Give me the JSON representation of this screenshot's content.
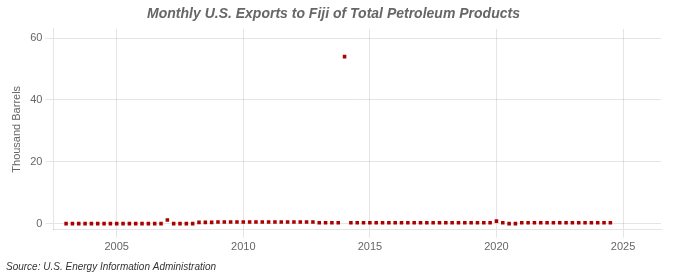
{
  "chart_data": {
    "type": "scatter",
    "title": "Monthly U.S. Exports to Fiji of Total Petroleum Products",
    "y_label": "Thousand Barrels",
    "annotations": [
      "Source: U.S. Energy Information Administration"
    ],
    "x": [
      2003.0,
      2003.25,
      2003.5,
      2003.75,
      2004.0,
      2004.25,
      2004.5,
      2004.75,
      2005.0,
      2005.25,
      2005.5,
      2005.75,
      2006.0,
      2006.25,
      2006.5,
      2006.75,
      2007.0,
      2007.25,
      2007.5,
      2007.75,
      2008.0,
      2008.25,
      2008.5,
      2008.75,
      2009.0,
      2009.25,
      2009.5,
      2009.75,
      2010.0,
      2010.25,
      2010.5,
      2010.75,
      2011.0,
      2011.25,
      2011.5,
      2011.75,
      2012.0,
      2012.25,
      2012.5,
      2012.75,
      2013.0,
      2013.25,
      2013.5,
      2013.75,
      2014.0,
      2014.25,
      2014.5,
      2014.75,
      2015.0,
      2015.25,
      2015.5,
      2015.75,
      2016.0,
      2016.25,
      2016.5,
      2016.75,
      2017.0,
      2017.25,
      2017.5,
      2017.75,
      2018.0,
      2018.25,
      2018.5,
      2018.75,
      2019.0,
      2019.25,
      2019.5,
      2019.75,
      2020.0,
      2020.25,
      2020.5,
      2020.75,
      2021.0,
      2021.25,
      2021.5,
      2021.75,
      2022.0,
      2022.25,
      2022.5,
      2022.75,
      2023.0,
      2023.25,
      2023.5,
      2023.75,
      2024.0,
      2024.25,
      2024.5
    ],
    "values": [
      0,
      0,
      0,
      0,
      0,
      0,
      0,
      0,
      0,
      0,
      0,
      0,
      0,
      0,
      0,
      0,
      1.2,
      0,
      0,
      0,
      0,
      0.4,
      0.4,
      0.4,
      0.5,
      0.5,
      0.5,
      0.5,
      0.5,
      0.5,
      0.5,
      0.5,
      0.5,
      0.5,
      0.5,
      0.5,
      0.5,
      0.5,
      0.5,
      0.5,
      0.3,
      0.3,
      0.3,
      0.3,
      54,
      0.3,
      0.3,
      0.3,
      0.3,
      0.3,
      0.3,
      0.3,
      0.3,
      0.3,
      0.3,
      0.3,
      0.3,
      0.3,
      0.3,
      0.3,
      0.3,
      0.3,
      0.3,
      0.3,
      0.3,
      0.3,
      0.3,
      0.3,
      0.8,
      0.3,
      0,
      0,
      0.3,
      0.3,
      0.3,
      0.3,
      0.3,
      0.3,
      0.3,
      0.3,
      0.3,
      0.3,
      0.3,
      0.3,
      0.3,
      0.3,
      0.3
    ],
    "color": "#aa0000",
    "marker": "square",
    "xlim": [
      2002.5,
      2026.5
    ],
    "xticks": [
      2005,
      2010,
      2015,
      2020,
      2025
    ],
    "ylim": [
      -2,
      63
    ],
    "yticks": [
      0,
      20,
      40,
      60
    ],
    "grid": true
  }
}
